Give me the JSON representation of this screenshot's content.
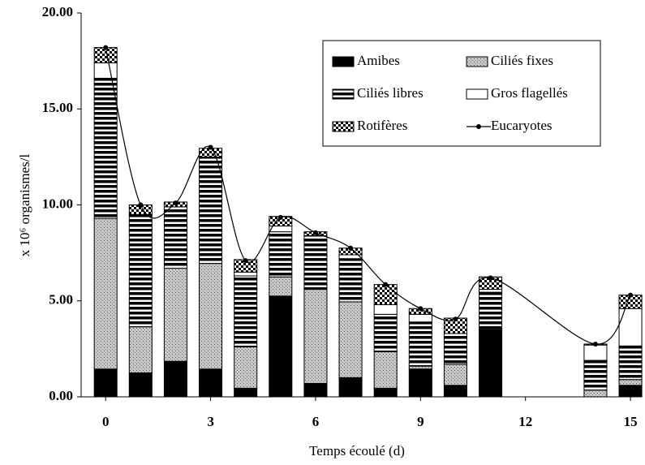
{
  "chart_data": {
    "type": "bar",
    "x_label": "Temps écoulé (d)",
    "y_label": "x 10⁶ organismes/l",
    "x": [
      0,
      1,
      2,
      3,
      4,
      5,
      6,
      7,
      8,
      9,
      10,
      11,
      14,
      15
    ],
    "series": [
      {
        "name": "Amibes",
        "color": "#000000",
        "pattern": "solid",
        "values": [
          1.45,
          1.25,
          1.85,
          1.45,
          0.45,
          5.25,
          0.7,
          1.0,
          0.45,
          1.45,
          0.6,
          3.5,
          0,
          0.6
        ]
      },
      {
        "name": "Ciliés fixes",
        "color": "#aaaaaa",
        "pattern": "dots",
        "values": [
          7.85,
          2.4,
          4.85,
          5.5,
          2.15,
          1.0,
          4.9,
          3.95,
          1.9,
          0.15,
          1.1,
          0.05,
          0.35,
          0.3
        ]
      },
      {
        "name": "Ciliés libres",
        "color": "#000000",
        "pattern": "stripes",
        "values": [
          7.3,
          5.85,
          3.2,
          5.55,
          3.7,
          2.35,
          2.8,
          2.25,
          1.95,
          2.3,
          1.6,
          1.9,
          1.55,
          1.75
        ]
      },
      {
        "name": "Gros flagellés",
        "color": "#ffffff",
        "pattern": "none",
        "values": [
          0.8,
          0,
          0,
          0,
          0.2,
          0.3,
          0,
          0.2,
          0.5,
          0.4,
          0,
          0.15,
          0.8,
          1.95
        ]
      },
      {
        "name": "Rotifères",
        "color": "#000000",
        "pattern": "checker",
        "values": [
          0.8,
          0.5,
          0.25,
          0.45,
          0.65,
          0.5,
          0.2,
          0.35,
          1.05,
          0.3,
          0.8,
          0.65,
          0.05,
          0.7
        ]
      },
      {
        "name": "Eucaryotes",
        "color": "#000000",
        "type": "line",
        "values": [
          18.2,
          10.0,
          10.1,
          13.0,
          7.1,
          9.35,
          8.55,
          7.75,
          5.85,
          4.6,
          4.05,
          6.2,
          2.75,
          5.3
        ]
      }
    ],
    "xlim": [
      -0.7,
      15.3
    ],
    "xticks": [
      0,
      3,
      6,
      9,
      12,
      15
    ],
    "ylim": [
      0,
      20
    ],
    "yticks": [
      {
        "value": 0,
        "label": "0.00"
      },
      {
        "value": 5,
        "label": "5.00"
      },
      {
        "value": 10,
        "label": "10.00"
      },
      {
        "value": 15,
        "label": "15.00"
      },
      {
        "value": 20,
        "label": "20.00"
      }
    ]
  }
}
